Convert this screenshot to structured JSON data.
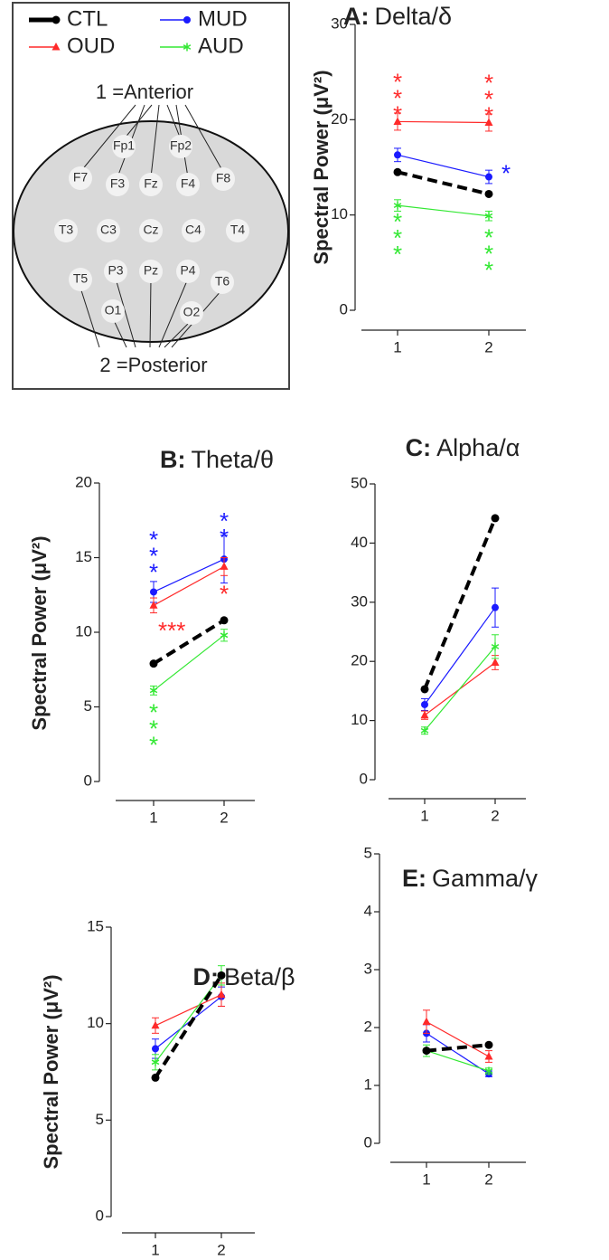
{
  "diagram": {
    "anterior": "1 =Anterior",
    "posterior": "2 =Posterior",
    "electrodes": [
      "Fp1",
      "Fp2",
      "F7",
      "F3",
      "Fz",
      "F4",
      "F8",
      "T3",
      "C3",
      "Cz",
      "C4",
      "T4",
      "T5",
      "P3",
      "Pz",
      "P4",
      "T6",
      "O1",
      "O2"
    ]
  },
  "chart_data": [
    {
      "type": "line",
      "panel": "A:",
      "title": "Delta/δ",
      "y_label": "Spectral Power  (μV²)",
      "categories": [
        "1",
        "2"
      ],
      "ylim": [
        0,
        30
      ],
      "yticks": [
        0,
        10,
        20,
        30
      ],
      "series": [
        {
          "name": "CTL",
          "color": "#000000",
          "marker": "circle",
          "dashed": true,
          "values": [
            14.5,
            12.2
          ]
        },
        {
          "name": "MUD",
          "color": "#1a1aff",
          "marker": "circle",
          "values": [
            16.3,
            14.0
          ],
          "errors": [
            0.7,
            0.7
          ],
          "significance": [
            null,
            "*"
          ]
        },
        {
          "name": "OUD",
          "color": "#ff2a2a",
          "marker": "triangle",
          "values": [
            19.8,
            19.7
          ],
          "errors": [
            0.9,
            0.9
          ],
          "significance": [
            "***",
            "***"
          ]
        },
        {
          "name": "AUD",
          "color": "#33e833",
          "marker": "asterisk",
          "values": [
            11.0,
            9.9
          ],
          "errors": [
            0.6,
            0.5
          ],
          "significance": [
            "***",
            "***"
          ]
        }
      ]
    },
    {
      "type": "line",
      "panel": "B:",
      "title": "Theta/θ",
      "y_label": "Spectral Power  (μV²)",
      "categories": [
        "1",
        "2"
      ],
      "ylim": [
        0,
        20
      ],
      "yticks": [
        0,
        5,
        10,
        15,
        20
      ],
      "series": [
        {
          "name": "CTL",
          "color": "#000000",
          "marker": "circle",
          "dashed": true,
          "values": [
            7.9,
            10.8
          ]
        },
        {
          "name": "MUD",
          "color": "#1a1aff",
          "marker": "circle",
          "values": [
            12.7,
            14.9
          ],
          "errors": [
            0.7,
            1.6
          ],
          "significance": [
            "***",
            "**"
          ]
        },
        {
          "name": "OUD",
          "color": "#ff2a2a",
          "marker": "triangle",
          "values": [
            11.8,
            14.4
          ],
          "errors": [
            0.5,
            0.6
          ],
          "significance": [
            "***",
            "*"
          ]
        },
        {
          "name": "AUD",
          "color": "#33e833",
          "marker": "asterisk",
          "values": [
            6.1,
            9.8
          ],
          "errors": [
            0.3,
            0.4
          ],
          "significance": [
            "***",
            null
          ]
        }
      ]
    },
    {
      "type": "line",
      "panel": "C:",
      "title": "Alpha/α",
      "categories": [
        "1",
        "2"
      ],
      "ylim": [
        0,
        50
      ],
      "yticks": [
        0,
        10,
        20,
        30,
        40,
        50
      ],
      "series": [
        {
          "name": "CTL",
          "color": "#000000",
          "marker": "circle",
          "dashed": true,
          "values": [
            15.3,
            44.2
          ]
        },
        {
          "name": "MUD",
          "color": "#1a1aff",
          "marker": "circle",
          "values": [
            12.7,
            29.1
          ],
          "errors": [
            1.0,
            3.3
          ]
        },
        {
          "name": "OUD",
          "color": "#ff2a2a",
          "marker": "triangle",
          "values": [
            10.9,
            19.8
          ],
          "errors": [
            0.7,
            1.2
          ]
        },
        {
          "name": "AUD",
          "color": "#33e833",
          "marker": "asterisk",
          "values": [
            8.3,
            22.5
          ],
          "errors": [
            0.6,
            2.0
          ]
        }
      ]
    },
    {
      "type": "line",
      "panel": "D:",
      "title": "Beta/β",
      "y_label": "Spectral Power  (μV²)",
      "categories": [
        "1",
        "2"
      ],
      "ylim": [
        0,
        15
      ],
      "yticks": [
        0,
        5,
        10,
        15
      ],
      "series": [
        {
          "name": "CTL",
          "color": "#000000",
          "marker": "circle",
          "dashed": true,
          "values": [
            7.2,
            12.5
          ]
        },
        {
          "name": "MUD",
          "color": "#1a1aff",
          "marker": "circle",
          "values": [
            8.7,
            11.4
          ],
          "errors": [
            0.5,
            0.5
          ]
        },
        {
          "name": "OUD",
          "color": "#ff2a2a",
          "marker": "triangle",
          "values": [
            9.9,
            11.5
          ],
          "errors": [
            0.4,
            0.6
          ]
        },
        {
          "name": "AUD",
          "color": "#33e833",
          "marker": "asterisk",
          "values": [
            8.0,
            12.5
          ],
          "errors": [
            0.4,
            0.5
          ]
        }
      ]
    },
    {
      "type": "line",
      "panel": "E:",
      "title": "Gamma/γ",
      "categories": [
        "1",
        "2"
      ],
      "ylim": [
        0,
        5
      ],
      "yticks": [
        0,
        1,
        2,
        3,
        4,
        5
      ],
      "series": [
        {
          "name": "CTL",
          "color": "#000000",
          "marker": "circle",
          "dashed": true,
          "values": [
            1.6,
            1.7
          ]
        },
        {
          "name": "MUD",
          "color": "#1a1aff",
          "marker": "circle",
          "values": [
            1.9,
            1.2
          ],
          "errors": [
            0.15,
            0.05
          ]
        },
        {
          "name": "OUD",
          "color": "#ff2a2a",
          "marker": "triangle",
          "values": [
            2.1,
            1.5
          ],
          "errors": [
            0.2,
            0.1
          ]
        },
        {
          "name": "AUD",
          "color": "#33e833",
          "marker": "asterisk",
          "values": [
            1.6,
            1.25
          ],
          "errors": [
            0.1,
            0.05
          ]
        }
      ]
    }
  ]
}
